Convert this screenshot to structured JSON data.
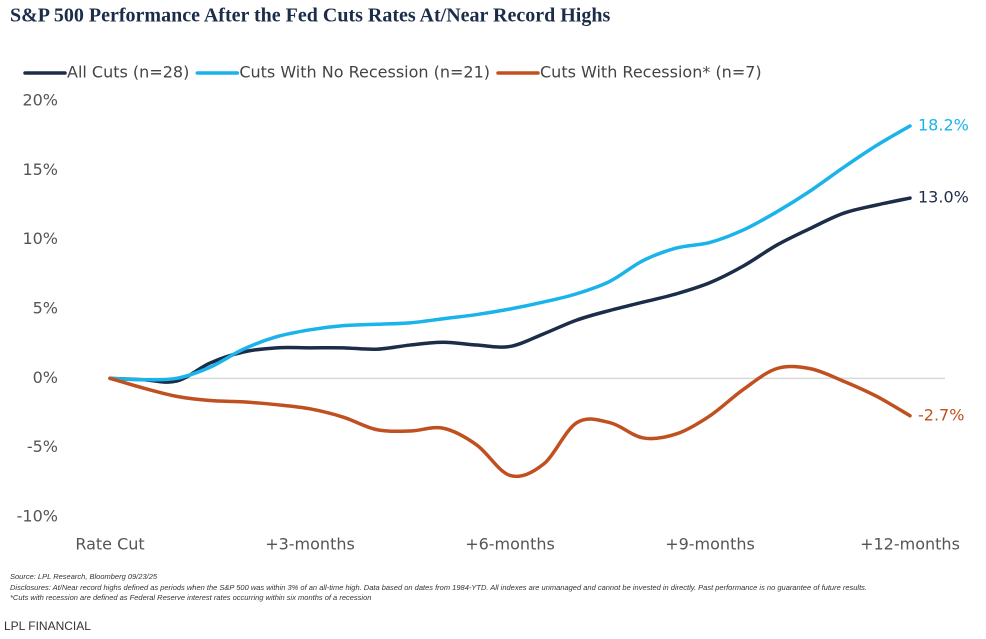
{
  "chart_data": {
    "type": "line",
    "title": "S&P 500 Performance After the Fed Cuts Rates At/Near Record Highs",
    "x": [
      0,
      0.5,
      1,
      1.5,
      2,
      2.5,
      3,
      3.5,
      4,
      4.5,
      5,
      5.5,
      6,
      6.5,
      7,
      7.5,
      8,
      8.5,
      9,
      9.5,
      10,
      10.5,
      11,
      11.5,
      12
    ],
    "series": [
      {
        "name": "All Cuts (n=28)",
        "color": "#1b2d48",
        "values": [
          0,
          -0.1,
          -0.2,
          1.1,
          1.9,
          2.2,
          2.2,
          2.2,
          2.1,
          2.4,
          2.6,
          2.4,
          2.3,
          3.2,
          4.2,
          4.9,
          5.5,
          6.1,
          6.9,
          8.1,
          9.6,
          10.8,
          11.9,
          12.5,
          13.0
        ],
        "value_labels": [
          null,
          null,
          null,
          null,
          null,
          null,
          null,
          null,
          null,
          null,
          null,
          null,
          null,
          null,
          null,
          null,
          null,
          null,
          null,
          null,
          null,
          null,
          null,
          null,
          "13.0%"
        ]
      },
      {
        "name": "Cuts With No Recession (n=21)",
        "color": "#1ab4ea",
        "values": [
          0,
          -0.1,
          0,
          0.8,
          2.1,
          3.0,
          3.5,
          3.8,
          3.9,
          4.0,
          4.3,
          4.6,
          5.0,
          5.5,
          6.1,
          7.0,
          8.5,
          9.4,
          9.8,
          10.7,
          12.0,
          13.5,
          15.2,
          16.8,
          18.2
        ],
        "value_labels": [
          null,
          null,
          null,
          null,
          null,
          null,
          null,
          null,
          null,
          null,
          null,
          null,
          null,
          null,
          null,
          null,
          null,
          null,
          null,
          null,
          null,
          null,
          null,
          null,
          "18.2%"
        ]
      },
      {
        "name": "Cuts With Recession* (n=7)",
        "color": "#c0501f",
        "values": [
          0,
          -0.7,
          -1.3,
          -1.6,
          -1.7,
          -1.9,
          -2.2,
          -2.8,
          -3.7,
          -3.8,
          -3.6,
          -4.8,
          -7.0,
          -6.2,
          -3.2,
          -3.2,
          -4.3,
          -4.0,
          -2.7,
          -0.8,
          0.7,
          0.7,
          -0.2,
          -1.3,
          -2.7
        ],
        "value_labels": [
          null,
          null,
          null,
          null,
          null,
          null,
          null,
          null,
          null,
          null,
          null,
          null,
          null,
          null,
          null,
          null,
          null,
          null,
          null,
          null,
          null,
          null,
          null,
          null,
          "-2.7%"
        ]
      }
    ],
    "xlim": [
      0,
      12
    ],
    "xticks": [
      {
        "value": 0,
        "label": "Rate Cut"
      },
      {
        "value": 3,
        "label": "+3-months"
      },
      {
        "value": 6,
        "label": "+6-months"
      },
      {
        "value": 9,
        "label": "+9-months"
      },
      {
        "value": 12,
        "label": "+12-months"
      }
    ],
    "ylim": [
      -10,
      20
    ],
    "yticks": [
      {
        "value": -10,
        "label": "-10%"
      },
      {
        "value": -5,
        "label": "-5%"
      },
      {
        "value": 0,
        "label": "0%"
      },
      {
        "value": 5,
        "label": "5%"
      },
      {
        "value": 10,
        "label": "10%"
      },
      {
        "value": 15,
        "label": "15%"
      },
      {
        "value": 20,
        "label": "20%"
      }
    ],
    "zero_line": true,
    "legend": "top-left",
    "source": "Source: LPL Research, Bloomberg 09/23/25",
    "disclosures": "Disclosures: At/Near record highs defined as periods when the S&P 500 was within 3% of an all-time high. Data based on dates from 1984-YTD. All indexes are unmanaged and cannot be invested in directly. Past performance is no guarantee of future results.",
    "footnote": "*Cuts with recession are defined as Federal Reserve interest rates occurring within six months of a recession",
    "brand": "LPL FINANCIAL"
  }
}
